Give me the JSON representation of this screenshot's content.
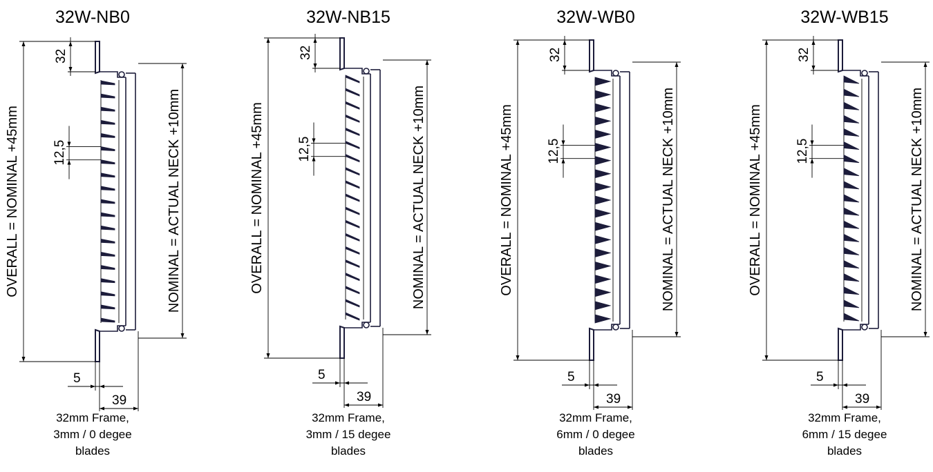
{
  "drawings": [
    {
      "model": "32W-NB0",
      "blade_style": "thin-0",
      "dims": {
        "frame": "32",
        "pitch": "12,5",
        "offset": "5",
        "depth": "39",
        "overall": "OVERALL = NOMINAL +45mm",
        "nominal": "NOMINAL = ACTUAL NECK +10mm"
      },
      "caption": [
        "32mm Frame,",
        "3mm / 0 degee",
        "blades"
      ]
    },
    {
      "model": "32W-NB15",
      "blade_style": "thin-15",
      "dims": {
        "frame": "32",
        "pitch": "12,5",
        "offset": "5",
        "depth": "39",
        "overall": "OVERALL = NOMINAL +45mm",
        "nominal": "NOMINAL = ACTUAL NECK +10mm"
      },
      "caption": [
        "32mm Frame,",
        "3mm / 15 degee",
        "blades"
      ]
    },
    {
      "model": "32W-WB0",
      "blade_style": "wide-0",
      "dims": {
        "frame": "32",
        "pitch": "12,5",
        "offset": "5",
        "depth": "39",
        "overall": "OVERALL = NOMINAL +45mm",
        "nominal": "NOMINAL = ACTUAL NECK +10mm"
      },
      "caption": [
        "32mm Frame,",
        "6mm / 0 degee",
        "blades"
      ]
    },
    {
      "model": "32W-WB15",
      "blade_style": "wide-15",
      "dims": {
        "frame": "32",
        "pitch": "12,5",
        "offset": "5",
        "depth": "39",
        "overall": "OVERALL = NOMINAL +45mm",
        "nominal": "NOMINAL = ACTUAL NECK +10mm"
      },
      "caption": [
        "32mm Frame,",
        "6mm / 15 degee",
        "blades"
      ]
    }
  ]
}
